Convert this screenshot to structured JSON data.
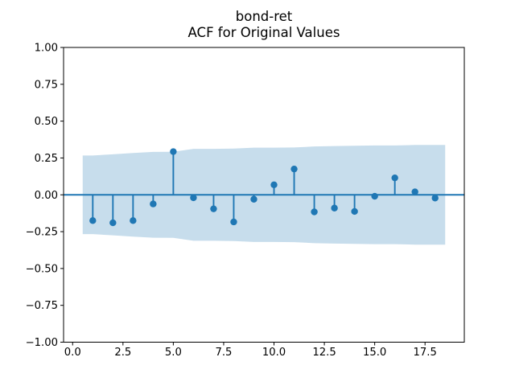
{
  "chart_data": {
    "type": "stem",
    "title": "bond-ret",
    "subtitle": "ACF for Original Values",
    "xlabel": "",
    "ylabel": "",
    "xlim": [
      -0.45,
      19.45
    ],
    "ylim": [
      -1.0,
      1.0
    ],
    "grid": false,
    "legend": "none",
    "x_tick_values": [
      0.0,
      2.5,
      5.0,
      7.5,
      10.0,
      12.5,
      15.0,
      17.5
    ],
    "x_tick_labels": [
      "0.0",
      "2.5",
      "5.0",
      "7.5",
      "10.0",
      "12.5",
      "15.0",
      "17.5"
    ],
    "y_tick_values": [
      1.0,
      0.75,
      0.5,
      0.25,
      0.0,
      -0.25,
      -0.5,
      -0.75,
      -1.0
    ],
    "y_tick_labels": [
      "1.00",
      "0.75",
      "0.50",
      "0.25",
      "0.00",
      "−0.25",
      "−0.50",
      "−0.75",
      "−1.00"
    ],
    "lags": [
      1,
      2,
      3,
      4,
      5,
      6,
      7,
      8,
      9,
      10,
      11,
      12,
      13,
      14,
      15,
      16,
      17,
      18
    ],
    "acf_values": [
      -0.175,
      -0.19,
      -0.175,
      -0.062,
      0.293,
      -0.02,
      -0.095,
      -0.184,
      -0.03,
      0.068,
      0.175,
      -0.116,
      -0.09,
      -0.113,
      -0.01,
      0.115,
      0.02,
      -0.022
    ],
    "confidence_band": {
      "x_start": 0.5,
      "x_end": 18.5,
      "half_width_per_lag": [
        0.267,
        0.275,
        0.284,
        0.291,
        0.292,
        0.312,
        0.312,
        0.314,
        0.32,
        0.32,
        0.321,
        0.328,
        0.331,
        0.333,
        0.335,
        0.335,
        0.338,
        0.338
      ]
    },
    "zero_line_y": 0.0,
    "colors": {
      "stem": "#1f77b4",
      "marker": "#1f77b4",
      "band": "#1f77b4",
      "band_opacity": 0.25,
      "zero_line": "#1f77b4",
      "axis": "#000000",
      "background": "#ffffff"
    }
  }
}
